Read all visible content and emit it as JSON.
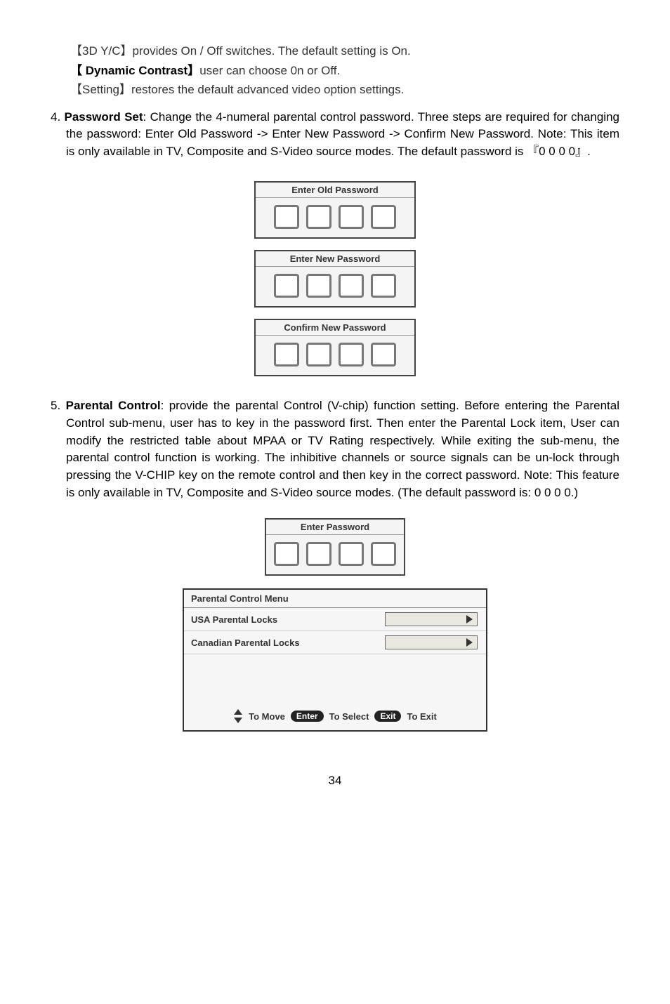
{
  "settings": {
    "line1_prefix": "【3D Y/C】",
    "line1_rest": "provides On / Off switches. The default setting is On.",
    "line2_prefix": "【 Dynamic Contrast】",
    "line2_rest": "user can choose 0n or Off.",
    "line3_prefix": "【Setting】",
    "line3_rest": "restores the default advanced video option settings."
  },
  "item4": {
    "num": "4. ",
    "title": "Password Set",
    "body": ": Change the 4-numeral parental control password. Three steps are required for changing the password: Enter Old Password -> Enter New Password -> Confirm New Password. Note: This item is only available in TV, Composite and S-Video source modes. The default password is 『0 0 0 0』."
  },
  "pw_groups": {
    "old": "Enter Old Password",
    "new": "Enter New Password",
    "confirm": "Confirm New Password"
  },
  "item5": {
    "num": "5. ",
    "title": "Parental Control",
    "body": ": provide the parental Control (V-chip) function setting. Before entering the Parental Control sub-menu, user has to key in the password first. Then enter the Parental Lock item, User can modify the restricted table about MPAA or TV Rating respectively. While exiting the sub-menu, the parental control function is working. The inhibitive channels or source signals can be un-lock through pressing the V-CHIP key on the remote control and then key in the correct password. Note: This feature is only available in TV, Composite and S-Video source modes. (The default password is: 0 0 0 0.)"
  },
  "enter_pw": "Enter  Password",
  "parental_menu": {
    "title": "Parental Control Menu",
    "row1": "USA Parental Locks",
    "row2": "Canadian Parental Locks",
    "footer": {
      "move": "To Move",
      "enter_key": "Enter",
      "select": "To Select",
      "exit_key": "Exit",
      "exit": "To Exit"
    }
  },
  "page_number": "34"
}
